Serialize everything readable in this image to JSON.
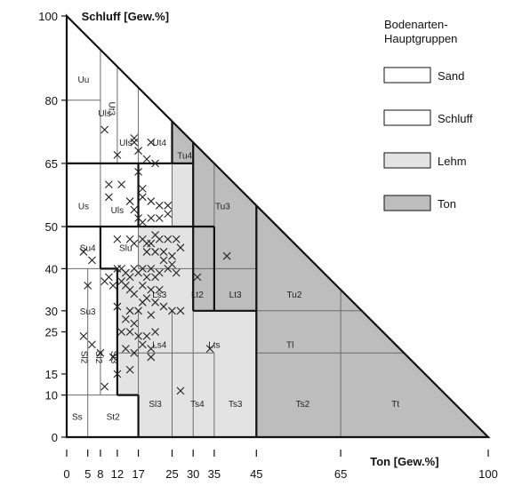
{
  "chart_data": {
    "type": "scatter",
    "subtype": "soil-texture-triangle",
    "x_axis": {
      "label": "Ton [Gew.%]",
      "range": [
        0,
        100
      ],
      "ticks": [
        0,
        5,
        8,
        12,
        17,
        25,
        30,
        35,
        45,
        65,
        100
      ]
    },
    "y_axis": {
      "label": "Schluff [Gew.%]",
      "range": [
        0,
        100
      ],
      "ticks": [
        0,
        10,
        15,
        25,
        30,
        40,
        50,
        65,
        80,
        100
      ]
    },
    "legend": {
      "title": "Bodenarten-\nHauptgruppen",
      "title_lines": [
        "Bodenarten-",
        "Hauptgruppen"
      ],
      "placement": "top-right",
      "items": [
        {
          "label": "Sand",
          "color": "#ffffff"
        },
        {
          "label": "Schluff",
          "color": "#ffffff"
        },
        {
          "label": "Lehm",
          "color": "#e3e3e3"
        },
        {
          "label": "Ton",
          "color": "#bdbdbd"
        }
      ]
    },
    "class_labels": [
      {
        "text": "Uu",
        "x": 4,
        "y": 85
      },
      {
        "text": "Uls",
        "x": 9,
        "y": 77
      },
      {
        "text": "Uls",
        "x": 14,
        "y": 70
      },
      {
        "text": "Ut4",
        "x": 22,
        "y": 70
      },
      {
        "text": "Tu4",
        "x": 28,
        "y": 67
      },
      {
        "text": "Us",
        "x": 4,
        "y": 55
      },
      {
        "text": "Uls",
        "x": 12,
        "y": 54
      },
      {
        "text": "Tu3",
        "x": 37,
        "y": 55
      },
      {
        "text": "Su4",
        "x": 5,
        "y": 45
      },
      {
        "text": "Slu",
        "x": 14,
        "y": 45
      },
      {
        "text": "Ls3",
        "x": 22,
        "y": 34
      },
      {
        "text": "Lt2",
        "x": 31,
        "y": 34
      },
      {
        "text": "Lt3",
        "x": 40,
        "y": 34
      },
      {
        "text": "Tu2",
        "x": 54,
        "y": 34
      },
      {
        "text": "Su3",
        "x": 5,
        "y": 30
      },
      {
        "text": "Ls4",
        "x": 22,
        "y": 22
      },
      {
        "text": "Lts",
        "x": 35,
        "y": 22
      },
      {
        "text": "Tl",
        "x": 53,
        "y": 22
      },
      {
        "text": "Sl3",
        "x": 21,
        "y": 8
      },
      {
        "text": "Ts4",
        "x": 31,
        "y": 8
      },
      {
        "text": "Ts3",
        "x": 40,
        "y": 8
      },
      {
        "text": "Ts2",
        "x": 56,
        "y": 8
      },
      {
        "text": "Tt",
        "x": 78,
        "y": 8
      },
      {
        "text": "Ss",
        "x": 2.5,
        "y": 5
      },
      {
        "text": "St2",
        "x": 11,
        "y": 5
      }
    ],
    "vertical_class_labels": [
      {
        "text": "Sl2",
        "x": 3.5,
        "y": 19
      },
      {
        "text": "Sl2",
        "x": 7,
        "y": 19
      },
      {
        "text": "Sl3",
        "x": 10.5,
        "y": 19
      },
      {
        "text": "Ut3",
        "x": 10,
        "y": 78
      }
    ],
    "points": [
      [
        9,
        73
      ],
      [
        10,
        60
      ],
      [
        12,
        67
      ],
      [
        16,
        71
      ],
      [
        16,
        70
      ],
      [
        17,
        68
      ],
      [
        19,
        66
      ],
      [
        20,
        70
      ],
      [
        21,
        65
      ],
      [
        13,
        60
      ],
      [
        10,
        57
      ],
      [
        17,
        63
      ],
      [
        18,
        59
      ],
      [
        18,
        57
      ],
      [
        20,
        56
      ],
      [
        22,
        55
      ],
      [
        24,
        55
      ],
      [
        24,
        53
      ],
      [
        15,
        56
      ],
      [
        16,
        54
      ],
      [
        17,
        52
      ],
      [
        18,
        51
      ],
      [
        20,
        52
      ],
      [
        22,
        52
      ],
      [
        12,
        47
      ],
      [
        15,
        47
      ],
      [
        16,
        46
      ],
      [
        18,
        47
      ],
      [
        19,
        46
      ],
      [
        20,
        46
      ],
      [
        21,
        48
      ],
      [
        22,
        47
      ],
      [
        24,
        47
      ],
      [
        26,
        47
      ],
      [
        19,
        44
      ],
      [
        21,
        44
      ],
      [
        23,
        44
      ],
      [
        25,
        43
      ],
      [
        27,
        45
      ],
      [
        4,
        44
      ],
      [
        6,
        42
      ],
      [
        5,
        36
      ],
      [
        9,
        37
      ],
      [
        10,
        38
      ],
      [
        11,
        36
      ],
      [
        12,
        40
      ],
      [
        13,
        40
      ],
      [
        14,
        39
      ],
      [
        15,
        38
      ],
      [
        16,
        40
      ],
      [
        17,
        39
      ],
      [
        18,
        40
      ],
      [
        19,
        38
      ],
      [
        20,
        40
      ],
      [
        21,
        38
      ],
      [
        22,
        39
      ],
      [
        23,
        42
      ],
      [
        24,
        40
      ],
      [
        25,
        41
      ],
      [
        26,
        39
      ],
      [
        13,
        37
      ],
      [
        14,
        36
      ],
      [
        15,
        35
      ],
      [
        16,
        34
      ],
      [
        18,
        36
      ],
      [
        20,
        35
      ],
      [
        22,
        35
      ],
      [
        19,
        33
      ],
      [
        21,
        32
      ],
      [
        23,
        31
      ],
      [
        25,
        30
      ],
      [
        27,
        30
      ],
      [
        31,
        38
      ],
      [
        38,
        43
      ],
      [
        12,
        31
      ],
      [
        14,
        28
      ],
      [
        15,
        30
      ],
      [
        16,
        27
      ],
      [
        17,
        30
      ],
      [
        18,
        32
      ],
      [
        20,
        29
      ],
      [
        13,
        25
      ],
      [
        15,
        25
      ],
      [
        17,
        24
      ],
      [
        19,
        24
      ],
      [
        21,
        25
      ],
      [
        14,
        21
      ],
      [
        16,
        20
      ],
      [
        18,
        22
      ],
      [
        20,
        21
      ],
      [
        4,
        24
      ],
      [
        6,
        22
      ],
      [
        8,
        20
      ],
      [
        11,
        19
      ],
      [
        12,
        15
      ],
      [
        15,
        16
      ],
      [
        20,
        19
      ],
      [
        9,
        12
      ],
      [
        34,
        21
      ],
      [
        27,
        11
      ]
    ]
  }
}
